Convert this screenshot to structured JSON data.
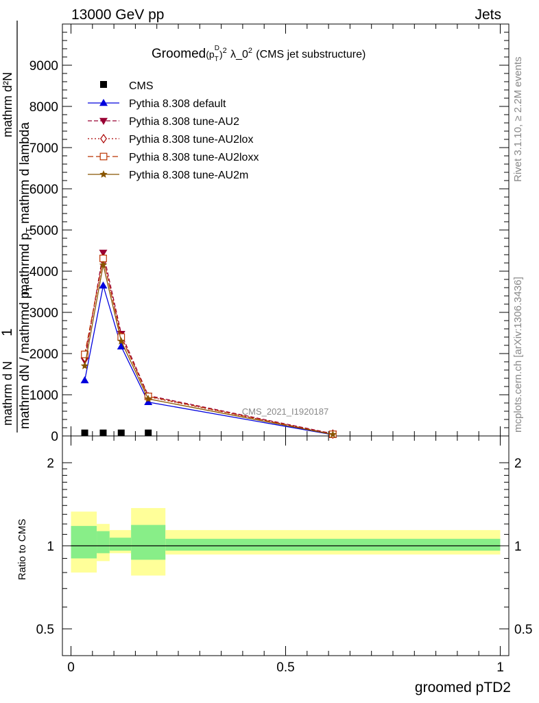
{
  "header": {
    "left": "13000 GeV pp",
    "right": "Jets"
  },
  "side": {
    "rivet": "Rivet 3.1.10, ≥ 2.2M events",
    "mcplots": "mcplots.cern.ch [arXiv:1306.3436]"
  },
  "watermark": "CMS_2021_I1920187",
  "title": {
    "main": "Groomed",
    "pt": "(p",
    "ptsub": "T",
    "ptsup": "D",
    "close": ")",
    "sq": "2",
    "lambda": "λ_0",
    "lsq": "2",
    "tail": "(CMS jet substructure)"
  },
  "ylabel": {
    "num": "1",
    "den": "mathrm dN / mathrmd p",
    "densub": "T",
    "den2": "mathrmd p",
    "den2sub": "T",
    "den3": "mathrm d lambda",
    "small": "mathrm d N",
    "smalltop": "mathrm d²N"
  },
  "ratio_ylabel": "Ratio to CMS",
  "xlabel": "groomed pTD2",
  "colors": {
    "default": "#0000dd",
    "au2": "#990033",
    "au2lox": "#aa0000",
    "au2loxx": "#bb3300",
    "au2m": "#885500",
    "band_inner": "#88ee88",
    "band_outer": "#ffff99"
  },
  "chart_data": {
    "type": "line",
    "xlim": [
      -0.02,
      1.02
    ],
    "ylim": [
      0,
      10000
    ],
    "ratio_ylim": [
      0.4,
      2.3
    ],
    "x_ticks": [
      0,
      0.5,
      1
    ],
    "x_tick_labels": [
      "0",
      "0.5",
      "1"
    ],
    "y_ticks": [
      0,
      1000,
      2000,
      3000,
      4000,
      5000,
      6000,
      7000,
      8000,
      9000
    ],
    "y_tick_labels": [
      "0",
      "1000",
      "2000",
      "3000",
      "4000",
      "5000",
      "6000",
      "7000",
      "8000",
      "9000"
    ],
    "ratio_ticks": [
      0.5,
      1,
      2
    ],
    "ratio_tick_labels": [
      "0.5",
      "1",
      "2"
    ],
    "x": [
      0.032,
      0.075,
      0.117,
      0.18,
      0.61
    ],
    "bins": [
      [
        0.0,
        0.06
      ],
      [
        0.06,
        0.09
      ],
      [
        0.09,
        0.14
      ],
      [
        0.14,
        0.22
      ],
      [
        0.22,
        1.0
      ]
    ],
    "data": {
      "name": "CMS",
      "values": [
        5,
        5,
        5,
        5,
        null
      ]
    },
    "series": [
      {
        "name": "Pythia 8.308 default",
        "key": "default",
        "marker": "triangle-up",
        "dash": "",
        "values": [
          1350,
          3650,
          2170,
          820,
          30
        ]
      },
      {
        "name": "Pythia 8.308 tune-AU2",
        "key": "au2",
        "marker": "triangle-down",
        "dash": "6,3",
        "values": [
          1830,
          4450,
          2480,
          980,
          55
        ]
      },
      {
        "name": "Pythia 8.308 tune-AU2lox",
        "key": "au2lox",
        "marker": "diamond",
        "dash": "2,3",
        "values": [
          1900,
          4320,
          2420,
          950,
          45
        ]
      },
      {
        "name": "Pythia 8.308 tune-AU2loxx",
        "key": "au2loxx",
        "marker": "square",
        "dash": "8,4",
        "values": [
          1980,
          4310,
          2400,
          960,
          40
        ]
      },
      {
        "name": "Pythia 8.308 tune-AU2m",
        "key": "au2m",
        "marker": "star",
        "dash": "",
        "values": [
          1700,
          4150,
          2300,
          900,
          35
        ]
      }
    ],
    "ratio_bands": [
      {
        "x0": 0.0,
        "x1": 0.06,
        "inner": [
          0.9,
          1.18
        ],
        "outer": [
          0.8,
          1.33
        ]
      },
      {
        "x0": 0.06,
        "x1": 0.09,
        "inner": [
          0.94,
          1.13
        ],
        "outer": [
          0.88,
          1.2
        ]
      },
      {
        "x0": 0.09,
        "x1": 0.14,
        "inner": [
          0.96,
          1.07
        ],
        "outer": [
          0.94,
          1.14
        ]
      },
      {
        "x0": 0.14,
        "x1": 0.22,
        "inner": [
          0.89,
          1.19
        ],
        "outer": [
          0.78,
          1.37
        ]
      },
      {
        "x0": 0.22,
        "x1": 1.0,
        "inner": [
          0.96,
          1.06
        ],
        "outer": [
          0.93,
          1.14
        ]
      }
    ]
  }
}
